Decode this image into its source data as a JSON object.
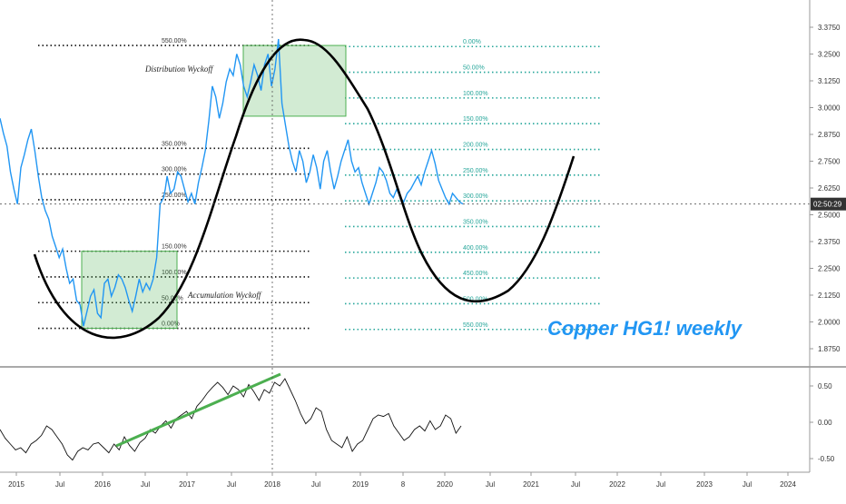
{
  "chart_data": [
    {
      "type": "line",
      "title": "Copper HG1! weekly",
      "ylim": [
        1.78,
        3.42
      ],
      "y_scale": "linear",
      "grid": false,
      "price_ticks": [
        "3.3750",
        "3.2500",
        "3.1250",
        "3.0000",
        "2.8750",
        "2.7500",
        "2.6250",
        "2.5000",
        "2.3750",
        "2.2500",
        "2.1250",
        "2.0000",
        "1.8750"
      ],
      "current_time_label": "02:50:29",
      "current_price": 2.55,
      "x_tick_labels": [
        "2015",
        "Jul",
        "2016",
        "Jul",
        "2017",
        "Jul",
        "2018",
        "Jul",
        "2019",
        "8",
        "2020",
        "Jul",
        "2021",
        "Jul",
        "2022",
        "Jul",
        "2023",
        "Jul",
        "2024"
      ],
      "series": [
        {
          "name": "",
          "x": [
            0,
            2,
            4,
            6,
            8,
            10,
            12,
            14,
            16,
            18,
            20,
            22,
            24,
            26,
            28,
            30,
            32,
            34,
            36,
            38,
            40,
            42,
            44,
            46,
            48,
            50,
            52,
            54,
            56,
            58,
            60,
            62,
            64,
            66,
            68,
            70,
            72,
            74,
            76,
            78,
            80,
            82,
            84,
            86,
            88,
            90,
            92,
            94,
            95,
            96,
            98,
            100,
            102,
            104,
            106,
            108,
            110,
            112,
            114,
            116,
            118,
            120,
            122,
            124,
            126,
            128,
            130,
            132,
            134,
            136,
            138,
            140,
            142,
            144,
            146,
            148,
            150,
            152,
            154,
            156,
            158,
            160,
            162,
            164,
            166,
            168,
            170,
            172,
            174,
            176,
            178,
            180,
            182,
            184,
            186,
            188,
            190,
            192,
            194,
            196,
            198,
            200,
            202,
            204,
            206,
            208,
            210,
            212,
            214,
            216,
            218,
            220,
            222,
            224,
            226,
            228,
            230,
            232,
            234,
            236,
            238,
            240,
            242,
            244,
            246,
            248,
            250,
            252,
            254,
            256,
            258,
            260,
            262,
            264,
            266
          ],
          "values": [
            2.95,
            2.88,
            2.82,
            2.7,
            2.62,
            2.55,
            2.72,
            2.78,
            2.85,
            2.9,
            2.8,
            2.68,
            2.58,
            2.52,
            2.48,
            2.4,
            2.35,
            2.3,
            2.34,
            2.25,
            2.18,
            2.2,
            2.1,
            2.08,
            1.98,
            2.05,
            2.12,
            2.15,
            2.04,
            2.02,
            2.18,
            2.2,
            2.12,
            2.16,
            2.22,
            2.2,
            2.16,
            2.1,
            2.05,
            2.12,
            2.2,
            2.14,
            2.18,
            2.15,
            2.2,
            2.3,
            2.55,
            2.58,
            2.62,
            2.68,
            2.6,
            2.62,
            2.7,
            2.68,
            2.62,
            2.56,
            2.6,
            2.55,
            2.65,
            2.72,
            2.8,
            2.94,
            3.1,
            3.05,
            2.95,
            3.02,
            3.12,
            3.18,
            3.15,
            3.25,
            3.2,
            3.1,
            3.05,
            3.12,
            3.2,
            3.15,
            3.08,
            3.2,
            3.25,
            3.1,
            3.18,
            3.32,
            3.02,
            2.92,
            2.82,
            2.75,
            2.7,
            2.8,
            2.75,
            2.65,
            2.7,
            2.78,
            2.72,
            2.62,
            2.75,
            2.8,
            2.7,
            2.62,
            2.68,
            2.75,
            2.8,
            2.85,
            2.75,
            2.7,
            2.72,
            2.65,
            2.6,
            2.55,
            2.6,
            2.65,
            2.72,
            2.7,
            2.66,
            2.6,
            2.58,
            2.62,
            2.58,
            2.56,
            2.6,
            2.62,
            2.65,
            2.68,
            2.64,
            2.7,
            2.75,
            2.8,
            2.74,
            2.66,
            2.62,
            2.58,
            2.55,
            2.6,
            2.58,
            2.56,
            2.55
          ]
        }
      ],
      "fib_left": {
        "levels": [
          {
            "label": "550.00%",
            "price": 3.29
          },
          {
            "label": "350.00%",
            "price": 2.81
          },
          {
            "label": "300.00%",
            "price": 2.69
          },
          {
            "label": "250.00%",
            "price": 2.57
          },
          {
            "label": "150.00%",
            "price": 2.33
          },
          {
            "label": "100.00%",
            "price": 2.21
          },
          {
            "label": "50.00%",
            "price": 2.09
          },
          {
            "label": "0.00%",
            "price": 1.97
          }
        ]
      },
      "fib_right": {
        "levels": [
          {
            "label": "0.00%",
            "price": 3.285
          },
          {
            "label": "50.00%",
            "price": 3.165
          },
          {
            "label": "100.00%",
            "price": 3.045
          },
          {
            "label": "150.00%",
            "price": 2.925
          },
          {
            "label": "200.00%",
            "price": 2.805
          },
          {
            "label": "250.00%",
            "price": 2.685
          },
          {
            "label": "300.00%",
            "price": 2.565
          },
          {
            "label": "350.00%",
            "price": 2.445
          },
          {
            "label": "400.00%",
            "price": 2.325
          },
          {
            "label": "450.00%",
            "price": 2.205
          },
          {
            "label": "500.00%",
            "price": 2.085
          },
          {
            "label": "550.00%",
            "price": 1.965
          }
        ]
      },
      "annotations": [
        "Distribution Wyckoff",
        "Accumulation Wyckoff"
      ]
    },
    {
      "type": "line",
      "ylim": [
        -0.75,
        0.75
      ],
      "y_ticks": [
        "0.50",
        "0.00",
        "-0.50"
      ],
      "series": [
        {
          "name": "",
          "values": [
            -0.1,
            -0.22,
            -0.3,
            -0.38,
            -0.35,
            -0.42,
            -0.3,
            -0.25,
            -0.18,
            -0.05,
            -0.1,
            -0.2,
            -0.3,
            -0.45,
            -0.52,
            -0.4,
            -0.35,
            -0.38,
            -0.3,
            -0.28,
            -0.35,
            -0.42,
            -0.3,
            -0.38,
            -0.2,
            -0.32,
            -0.4,
            -0.28,
            -0.22,
            -0.1,
            -0.15,
            -0.05,
            0.02,
            -0.08,
            0.05,
            0.1,
            0.15,
            0.05,
            0.22,
            0.3,
            0.4,
            0.48,
            0.55,
            0.48,
            0.38,
            0.5,
            0.45,
            0.35,
            0.52,
            0.42,
            0.3,
            0.45,
            0.4,
            0.55,
            0.5,
            0.6,
            0.45,
            0.3,
            0.12,
            -0.02,
            0.05,
            0.2,
            0.15,
            -0.1,
            -0.25,
            -0.3,
            -0.35,
            -0.2,
            -0.4,
            -0.3,
            -0.25,
            -0.1,
            0.05,
            0.1,
            0.08,
            0.12,
            -0.05,
            -0.15,
            -0.25,
            -0.2,
            -0.1,
            -0.05,
            -0.12,
            0.02,
            -0.1,
            -0.05,
            0.1,
            0.05,
            -0.15,
            -0.05
          ]
        }
      ]
    }
  ]
}
